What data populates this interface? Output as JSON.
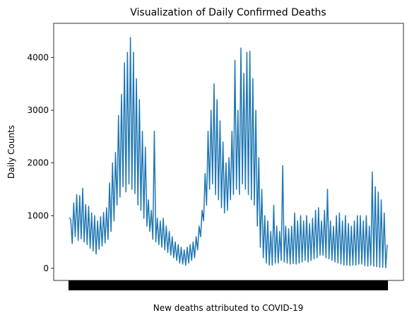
{
  "chart_data": {
    "type": "line",
    "title": "Visualization of Daily Confirmed Deaths",
    "xlabel": "New deaths attributed to COVID-19",
    "ylabel": "Daily Counts",
    "ylim": [
      -230,
      4650
    ],
    "yticks": [
      0,
      1000,
      2000,
      3000,
      4000
    ],
    "grid": false,
    "legend": "none",
    "line_color": "#1f77b4",
    "series": [
      {
        "values": [
          960,
          930,
          470,
          1240,
          600,
          1400,
          530,
          1380,
          560,
          1520,
          500,
          1210,
          450,
          1180,
          380,
          1050,
          330,
          1000,
          270,
          900,
          360,
          980,
          420,
          1060,
          480,
          1150,
          550,
          1620,
          700,
          2000,
          900,
          2200,
          1200,
          2900,
          1350,
          3300,
          1550,
          3900,
          1450,
          4100,
          1600,
          4380,
          1500,
          4100,
          1420,
          3600,
          1200,
          3200,
          1100,
          2600,
          950,
          2300,
          800,
          1300,
          700,
          1100,
          550,
          2600,
          500,
          950,
          450,
          900,
          400,
          950,
          350,
          800,
          300,
          700,
          250,
          600,
          200,
          500,
          150,
          450,
          100,
          400,
          80,
          350,
          60,
          400,
          100,
          450,
          150,
          500,
          200,
          600,
          350,
          800,
          600,
          1100,
          900,
          1800,
          1200,
          2600,
          1500,
          3000,
          1600,
          3500,
          1400,
          3200,
          1300,
          2800,
          1150,
          2400,
          1050,
          2000,
          1100,
          2100,
          1300,
          2600,
          1400,
          3950,
          1500,
          3000,
          1400,
          4180,
          1600,
          3700,
          1500,
          4100,
          1400,
          4120,
          1300,
          3600,
          1200,
          3000,
          800,
          2100,
          400,
          1500,
          200,
          1000,
          100,
          900,
          60,
          700,
          60,
          1200,
          100,
          800,
          100,
          700,
          150,
          1950,
          120,
          800,
          100,
          750,
          80,
          800,
          90,
          1050,
          80,
          900,
          100,
          1000,
          120,
          900,
          150,
          1000,
          120,
          850,
          150,
          950,
          180,
          1100,
          200,
          1150,
          250,
          900,
          250,
          1100,
          200,
          1500,
          180,
          900,
          150,
          800,
          120,
          1000,
          100,
          1050,
          80,
          900,
          60,
          1000,
          60,
          850,
          50,
          800,
          60,
          900,
          60,
          1000,
          80,
          1000,
          80,
          900,
          50,
          1000,
          40,
          800,
          60,
          1830,
          40,
          1550,
          30,
          1450,
          20,
          1300,
          20,
          1050,
          10,
          450
        ]
      }
    ]
  }
}
